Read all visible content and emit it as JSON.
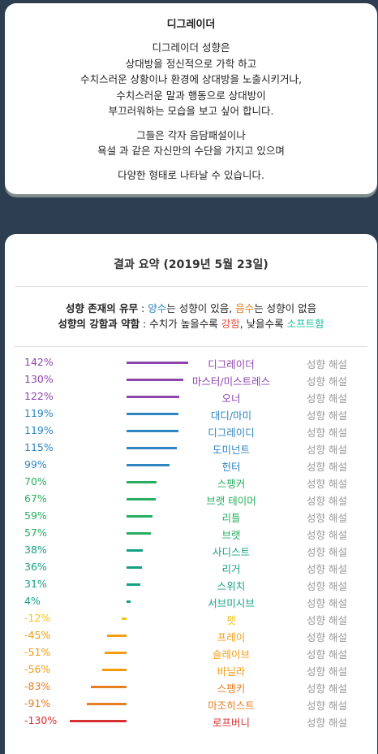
{
  "intro": {
    "title": "디그레이더",
    "paragraphs": [
      [
        "디그레이더 성향은",
        "상대방을 정신적으로 가학 하고",
        "수치스러운 상황이나 환경에 상대방을 노출시키거나,",
        "수치스러운 말과 행동으로 상대방이",
        "부끄러워하는 모습을 보고 싶어 합니다."
      ],
      [
        "그들은 각자 음담패설이나",
        "욕설 과 같은 자신만의 수단을 가지고 있으며"
      ],
      [
        "다양한 형태로 나타날 수 있습니다."
      ]
    ]
  },
  "summary": {
    "title": "결과 요약 (2019년 5월 23일)",
    "legend1": {
      "key": "성향 존재의 유무",
      "sep": " : ",
      "pos": "양수",
      "mid": "는 성향이 있음, ",
      "neg": "음수",
      "end": "는 성향이 없음"
    },
    "legend2": {
      "key": "성향의 강함과 약함",
      "sep": " : 수치가 높을수록 ",
      "strong": "강함",
      "mid": ", 낮을수록 ",
      "soft": "소프트함"
    },
    "interp_label": "성향 해설",
    "colors": {
      "purple": "#8e44ad",
      "blue": "#2e86c1",
      "green": "#27ae60",
      "teal": "#16a085",
      "yellow": "#f1c40f",
      "orange": "#f39c12",
      "darkorange": "#e67e22",
      "red": "#e74c3c",
      "darkred": "#d63031"
    },
    "rows": [
      {
        "pct": "142%",
        "value": 142,
        "name": "디그레이더",
        "color": "purple"
      },
      {
        "pct": "130%",
        "value": 130,
        "name": "마스터/미스트레스",
        "color": "purple"
      },
      {
        "pct": "122%",
        "value": 122,
        "name": "오너",
        "color": "purple"
      },
      {
        "pct": "119%",
        "value": 119,
        "name": "대디/마미",
        "color": "blue"
      },
      {
        "pct": "119%",
        "value": 119,
        "name": "디그레이디",
        "color": "blue"
      },
      {
        "pct": "115%",
        "value": 115,
        "name": "도미넌트",
        "color": "blue"
      },
      {
        "pct": "99%",
        "value": 99,
        "name": "헌터",
        "color": "blue"
      },
      {
        "pct": "70%",
        "value": 70,
        "name": "스팽커",
        "color": "green"
      },
      {
        "pct": "67%",
        "value": 67,
        "name": "브랫 테이머",
        "color": "green"
      },
      {
        "pct": "59%",
        "value": 59,
        "name": "리틀",
        "color": "green"
      },
      {
        "pct": "57%",
        "value": 57,
        "name": "브랫",
        "color": "green"
      },
      {
        "pct": "38%",
        "value": 38,
        "name": "사디스트",
        "color": "teal"
      },
      {
        "pct": "36%",
        "value": 36,
        "name": "리거",
        "color": "teal"
      },
      {
        "pct": "31%",
        "value": 31,
        "name": "스위치",
        "color": "teal"
      },
      {
        "pct": "4%",
        "value": 4,
        "name": "서브미시브",
        "color": "teal"
      },
      {
        "pct": "-12%",
        "value": -12,
        "name": "펫",
        "color": "yellow"
      },
      {
        "pct": "-45%",
        "value": -45,
        "name": "프레이",
        "color": "orange"
      },
      {
        "pct": "-51%",
        "value": -51,
        "name": "슬레이브",
        "color": "orange"
      },
      {
        "pct": "-56%",
        "value": -56,
        "name": "바닐라",
        "color": "orange"
      },
      {
        "pct": "-83%",
        "value": -83,
        "name": "스팽키",
        "color": "darkorange"
      },
      {
        "pct": "-91%",
        "value": -91,
        "name": "마조히스트",
        "color": "darkorange"
      },
      {
        "pct": "-130%",
        "value": -130,
        "name": "로프버니",
        "color": "darkred"
      }
    ]
  }
}
